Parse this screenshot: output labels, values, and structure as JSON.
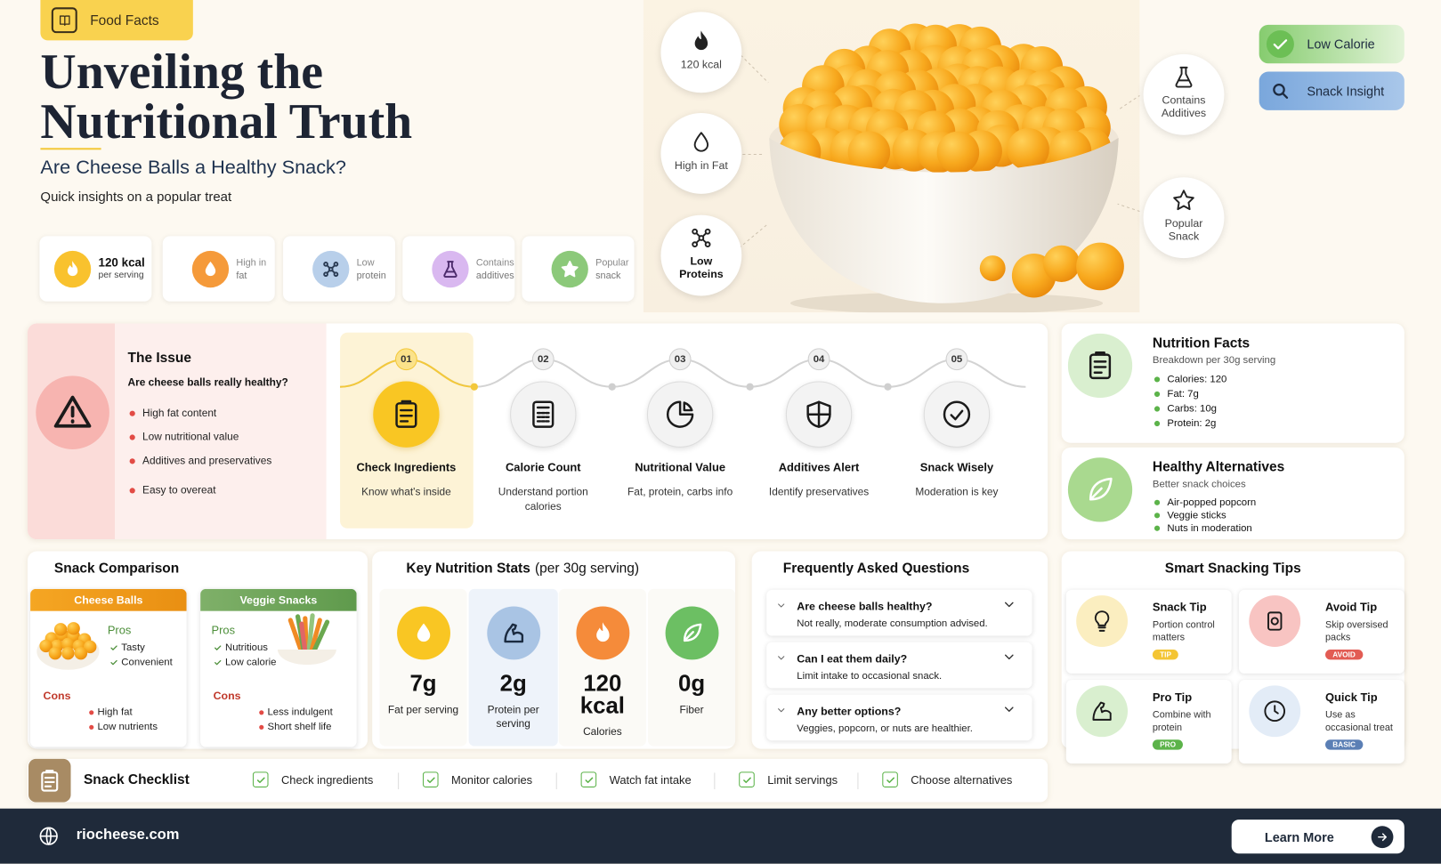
{
  "header": {
    "tag": "Food Facts",
    "title": [
      "Unveiling the",
      "Nutritional Truth"
    ],
    "subtitle": "Are Cheese Balls a Healthy Snack?",
    "tagline": "Quick insights on a popular treat"
  },
  "quick_stats": [
    {
      "main": "120 kcal",
      "sub": "per serving"
    },
    {
      "main": "High in",
      "sub": "fat"
    },
    {
      "main": "Low",
      "sub": "protein"
    },
    {
      "main": "Contains",
      "sub": "additives"
    },
    {
      "main": "Popular",
      "sub": "snack"
    }
  ],
  "hero": {
    "callouts": [
      "120 kcal",
      "High in Fat",
      "Low Proteins",
      "Contains Additives",
      "Popular Snack"
    ],
    "badges": [
      "Low Calorie",
      "Snack Insight"
    ]
  },
  "issue": {
    "title": "The Issue",
    "question": "Are cheese balls really healthy?",
    "points": [
      "High fat content",
      "Low nutritional value",
      "Additives and preservatives",
      "Easy to overeat"
    ]
  },
  "steps": [
    {
      "number": "01",
      "title": "Check Ingredients",
      "desc": "Know what's inside"
    },
    {
      "number": "02",
      "title": "Calorie Count",
      "desc": "Understand portion calories"
    },
    {
      "number": "03",
      "title": "Nutritional Value",
      "desc": "Fat, protein, carbs info"
    },
    {
      "number": "04",
      "title": "Additives Alert",
      "desc": "Identify preservatives"
    },
    {
      "number": "05",
      "title": "Snack Wisely",
      "desc": "Moderation is key"
    }
  ],
  "nutrition_facts": {
    "title": "Nutrition Facts",
    "subtitle": "Breakdown per 30g serving",
    "items": [
      "Calories: 120",
      "Fat: 7g",
      "Carbs: 10g",
      "Protein: 2g"
    ]
  },
  "alternatives": {
    "title": "Healthy Alternatives",
    "subtitle": "Better snack choices",
    "items": [
      "Air-popped popcorn",
      "Veggie sticks",
      "Nuts in moderation"
    ]
  },
  "comparison": {
    "title": "Snack Comparison",
    "cards": [
      {
        "name": "Cheese Balls",
        "pros_label": "Pros",
        "pros": [
          "Tasty",
          "Convenient"
        ],
        "cons_label": "Cons",
        "cons": [
          "High fat",
          "Low nutrients"
        ]
      },
      {
        "name": "Veggie Snacks",
        "pros_label": "Pros",
        "pros": [
          "Nutritious",
          "Low calorie"
        ],
        "cons_label": "Cons",
        "cons": [
          "Less indulgent",
          "Short shelf life"
        ]
      }
    ]
  },
  "key_stats": {
    "title": "Key Nutrition Stats",
    "note": "(per 30g serving)",
    "items": [
      {
        "value": "7g",
        "label": "Fat per serving"
      },
      {
        "value": "2g",
        "label": "Protein per serving"
      },
      {
        "value": "120 kcal",
        "label": "Calories"
      },
      {
        "value": "0g",
        "label": "Fiber"
      }
    ]
  },
  "faq": {
    "title": "Frequently Asked Questions",
    "items": [
      {
        "q": "Are cheese balls healthy?",
        "a": "Not really, moderate consumption advised."
      },
      {
        "q": "Can I eat them daily?",
        "a": "Limit intake to occasional snack."
      },
      {
        "q": "Any better options?",
        "a": "Veggies, popcorn, or nuts are healthier."
      }
    ]
  },
  "tips": {
    "title": "Smart Snacking Tips",
    "items": [
      {
        "title": "Snack Tip",
        "desc": "Portion control matters",
        "tag": "TIP"
      },
      {
        "title": "Avoid Tip",
        "desc": "Skip oversised packs",
        "tag": "AVOID"
      },
      {
        "title": "Pro Tip",
        "desc": "Combine with protein",
        "tag": "PRO"
      },
      {
        "title": "Quick Tip",
        "desc": "Use as occasional treat",
        "tag": "BASIC"
      }
    ]
  },
  "checklist": {
    "title": "Snack Checklist",
    "items": [
      "Check ingredients",
      "Monitor calories",
      "Watch fat intake",
      "Limit servings",
      "Choose alternatives"
    ]
  },
  "footer": {
    "site": "riocheese.com",
    "button": "Learn More"
  }
}
